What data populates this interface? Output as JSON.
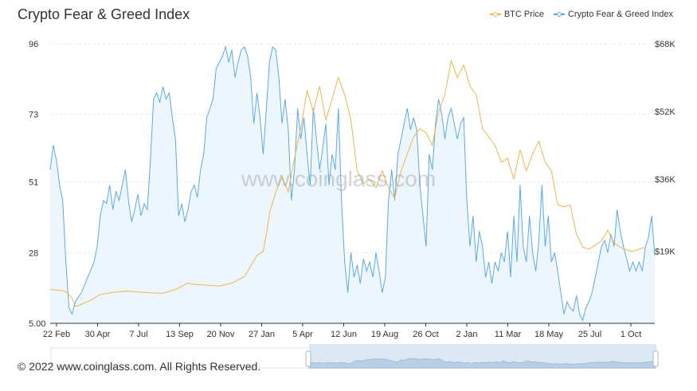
{
  "title": "Crypto Fear & Greed Index",
  "legend": {
    "btc_label": "BTC Price",
    "fng_label": "Crypto Fear & Greed Index"
  },
  "watermark": "www.coinglass.com",
  "footer": "© 2022 www.coinglass.com. All Rights Reserved.",
  "colors": {
    "btc": "#e8b84a",
    "fng": "#5aa9e6",
    "fng_fill": "#eaf4fc",
    "grid": "#e6e6e6",
    "slider_bg": "#dce8f5"
  },
  "chart_data": {
    "type": "line",
    "title": "Crypto Fear & Greed Index",
    "x_ticks": [
      "22 Feb",
      "30 Apr",
      "7 Jul",
      "13 Sep",
      "20 Nov",
      "27 Jan",
      "5 Apr",
      "12 Jun",
      "19 Aug",
      "26 Oct",
      "2 Jan",
      "11 Mar",
      "18 May",
      "25 Jul",
      "1 Oct"
    ],
    "y_left_ticks": [
      "5.00",
      "28",
      "51",
      "73",
      "96"
    ],
    "y_left_range": [
      5,
      96
    ],
    "y_right_ticks": [
      "$19K",
      "$36K",
      "$52K",
      "$68K"
    ],
    "y_right_range": [
      2000,
      68000
    ],
    "grid": true,
    "legend_position": "top-right",
    "series": [
      {
        "name": "BTC Price",
        "axis": "right",
        "color": "#e8b84a",
        "values": [
          [
            0,
            10000
          ],
          [
            3,
            9800
          ],
          [
            5,
            9500
          ],
          [
            7,
            8000
          ],
          [
            8,
            6000
          ],
          [
            10,
            6500
          ],
          [
            13,
            7500
          ],
          [
            16,
            8800
          ],
          [
            20,
            9300
          ],
          [
            24,
            9600
          ],
          [
            28,
            9400
          ],
          [
            32,
            9200
          ],
          [
            36,
            9100
          ],
          [
            40,
            10000
          ],
          [
            44,
            11500
          ],
          [
            46,
            11200
          ],
          [
            50,
            11000
          ],
          [
            54,
            10800
          ],
          [
            58,
            11500
          ],
          [
            62,
            13000
          ],
          [
            64,
            15500
          ],
          [
            66,
            18000
          ],
          [
            68,
            19000
          ],
          [
            69,
            23000
          ],
          [
            70,
            28000
          ],
          [
            72,
            33000
          ],
          [
            74,
            36500
          ],
          [
            76,
            33000
          ],
          [
            78,
            41000
          ],
          [
            80,
            48000
          ],
          [
            82,
            57000
          ],
          [
            84,
            52000
          ],
          [
            86,
            58000
          ],
          [
            88,
            50000
          ],
          [
            90,
            55000
          ],
          [
            92,
            60000
          ],
          [
            94,
            56000
          ],
          [
            96,
            50000
          ],
          [
            98,
            38000
          ],
          [
            100,
            35000
          ],
          [
            102,
            36000
          ],
          [
            104,
            34000
          ],
          [
            106,
            38000
          ],
          [
            108,
            34000
          ],
          [
            110,
            31500
          ],
          [
            112,
            38000
          ],
          [
            114,
            42000
          ],
          [
            116,
            46000
          ],
          [
            118,
            48000
          ],
          [
            120,
            47000
          ],
          [
            122,
            44000
          ],
          [
            124,
            52000
          ],
          [
            126,
            56000
          ],
          [
            128,
            64000
          ],
          [
            130,
            60000
          ],
          [
            132,
            63000
          ],
          [
            134,
            58000
          ],
          [
            136,
            56000
          ],
          [
            138,
            48000
          ],
          [
            140,
            46000
          ],
          [
            142,
            44000
          ],
          [
            144,
            40000
          ],
          [
            146,
            41000
          ],
          [
            148,
            36000
          ],
          [
            150,
            43000
          ],
          [
            152,
            38000
          ],
          [
            154,
            42000
          ],
          [
            156,
            45000
          ],
          [
            158,
            40000
          ],
          [
            160,
            38000
          ],
          [
            162,
            30000
          ],
          [
            164,
            29500
          ],
          [
            166,
            30000
          ],
          [
            168,
            23000
          ],
          [
            170,
            20000
          ],
          [
            172,
            19500
          ],
          [
            174,
            20500
          ],
          [
            176,
            21500
          ],
          [
            178,
            24000
          ],
          [
            180,
            21000
          ],
          [
            182,
            20000
          ],
          [
            184,
            19300
          ],
          [
            186,
            19000
          ],
          [
            188,
            19500
          ],
          [
            190,
            20000
          ]
        ]
      },
      {
        "name": "Crypto Fear & Greed Index",
        "axis": "left",
        "color": "#5aa9e6",
        "values": [
          [
            0,
            55
          ],
          [
            1,
            63
          ],
          [
            2,
            58
          ],
          [
            3,
            50
          ],
          [
            4,
            45
          ],
          [
            5,
            25
          ],
          [
            6,
            10
          ],
          [
            7,
            8
          ],
          [
            8,
            12
          ],
          [
            10,
            15
          ],
          [
            12,
            20
          ],
          [
            14,
            25
          ],
          [
            15,
            30
          ],
          [
            16,
            40
          ],
          [
            17,
            45
          ],
          [
            18,
            44
          ],
          [
            19,
            50
          ],
          [
            20,
            42
          ],
          [
            21,
            48
          ],
          [
            22,
            45
          ],
          [
            23,
            50
          ],
          [
            24,
            55
          ],
          [
            25,
            45
          ],
          [
            26,
            38
          ],
          [
            27,
            42
          ],
          [
            28,
            47
          ],
          [
            29,
            40
          ],
          [
            30,
            44
          ],
          [
            31,
            42
          ],
          [
            32,
            58
          ],
          [
            33,
            78
          ],
          [
            34,
            80
          ],
          [
            35,
            77
          ],
          [
            36,
            82
          ],
          [
            37,
            78
          ],
          [
            38,
            80
          ],
          [
            39,
            72
          ],
          [
            40,
            65
          ],
          [
            41,
            40
          ],
          [
            42,
            44
          ],
          [
            43,
            38
          ],
          [
            44,
            42
          ],
          [
            45,
            48
          ],
          [
            46,
            50
          ],
          [
            47,
            46
          ],
          [
            48,
            55
          ],
          [
            49,
            60
          ],
          [
            50,
            72
          ],
          [
            51,
            75
          ],
          [
            52,
            78
          ],
          [
            53,
            88
          ],
          [
            54,
            90
          ],
          [
            55,
            92
          ],
          [
            56,
            95
          ],
          [
            57,
            90
          ],
          [
            58,
            94
          ],
          [
            59,
            85
          ],
          [
            60,
            90
          ],
          [
            61,
            94
          ],
          [
            62,
            95
          ],
          [
            63,
            92
          ],
          [
            64,
            85
          ],
          [
            65,
            70
          ],
          [
            66,
            80
          ],
          [
            67,
            72
          ],
          [
            68,
            60
          ],
          [
            69,
            75
          ],
          [
            70,
            90
          ],
          [
            71,
            95
          ],
          [
            72,
            94
          ],
          [
            73,
            85
          ],
          [
            74,
            70
          ],
          [
            75,
            78
          ],
          [
            76,
            68
          ],
          [
            77,
            45
          ],
          [
            78,
            55
          ],
          [
            79,
            75
          ],
          [
            80,
            65
          ],
          [
            81,
            72
          ],
          [
            82,
            60
          ],
          [
            83,
            50
          ],
          [
            84,
            75
          ],
          [
            85,
            65
          ],
          [
            86,
            55
          ],
          [
            87,
            62
          ],
          [
            88,
            70
          ],
          [
            89,
            50
          ],
          [
            90,
            60
          ],
          [
            91,
            55
          ],
          [
            92,
            75
          ],
          [
            93,
            45
          ],
          [
            94,
            25
          ],
          [
            95,
            15
          ],
          [
            96,
            28
          ],
          [
            97,
            20
          ],
          [
            98,
            24
          ],
          [
            99,
            18
          ],
          [
            100,
            26
          ],
          [
            101,
            22
          ],
          [
            102,
            25
          ],
          [
            103,
            20
          ],
          [
            104,
            28
          ],
          [
            105,
            22
          ],
          [
            106,
            15
          ],
          [
            107,
            20
          ],
          [
            108,
            45
          ],
          [
            109,
            55
          ],
          [
            110,
            45
          ],
          [
            111,
            60
          ],
          [
            112,
            65
          ],
          [
            113,
            70
          ],
          [
            114,
            75
          ],
          [
            115,
            68
          ],
          [
            116,
            72
          ],
          [
            117,
            68
          ],
          [
            118,
            50
          ],
          [
            119,
            40
          ],
          [
            120,
            30
          ],
          [
            121,
            60
          ],
          [
            122,
            55
          ],
          [
            123,
            70
          ],
          [
            124,
            78
          ],
          [
            125,
            73
          ],
          [
            126,
            65
          ],
          [
            127,
            72
          ],
          [
            128,
            75
          ],
          [
            129,
            70
          ],
          [
            130,
            65
          ],
          [
            131,
            70
          ],
          [
            132,
            72
          ],
          [
            133,
            45
          ],
          [
            134,
            30
          ],
          [
            135,
            40
          ],
          [
            136,
            25
          ],
          [
            137,
            35
          ],
          [
            138,
            30
          ],
          [
            139,
            20
          ],
          [
            140,
            25
          ],
          [
            141,
            18
          ],
          [
            142,
            25
          ],
          [
            143,
            22
          ],
          [
            144,
            28
          ],
          [
            145,
            25
          ],
          [
            146,
            35
          ],
          [
            147,
            20
          ],
          [
            148,
            40
          ],
          [
            149,
            25
          ],
          [
            150,
            50
          ],
          [
            151,
            30
          ],
          [
            152,
            25
          ],
          [
            153,
            40
          ],
          [
            154,
            28
          ],
          [
            155,
            22
          ],
          [
            156,
            32
          ],
          [
            157,
            50
          ],
          [
            158,
            30
          ],
          [
            159,
            40
          ],
          [
            160,
            25
          ],
          [
            161,
            28
          ],
          [
            162,
            22
          ],
          [
            163,
            15
          ],
          [
            164,
            8
          ],
          [
            165,
            12
          ],
          [
            166,
            10
          ],
          [
            167,
            9
          ],
          [
            168,
            14
          ],
          [
            169,
            8
          ],
          [
            170,
            6
          ],
          [
            171,
            10
          ],
          [
            172,
            12
          ],
          [
            173,
            15
          ],
          [
            174,
            20
          ],
          [
            175,
            25
          ],
          [
            176,
            30
          ],
          [
            177,
            32
          ],
          [
            178,
            28
          ],
          [
            179,
            34
          ],
          [
            180,
            30
          ],
          [
            181,
            42
          ],
          [
            182,
            35
          ],
          [
            183,
            30
          ],
          [
            184,
            26
          ],
          [
            185,
            22
          ],
          [
            186,
            25
          ],
          [
            187,
            22
          ],
          [
            188,
            25
          ],
          [
            189,
            22
          ],
          [
            190,
            30
          ],
          [
            191,
            33
          ],
          [
            192,
            40
          ],
          [
            193,
            27
          ]
        ]
      }
    ]
  }
}
